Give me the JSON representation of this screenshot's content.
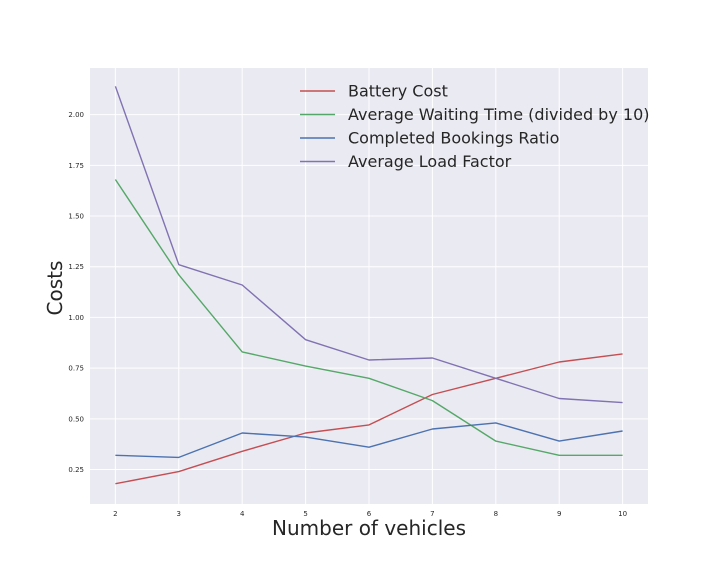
{
  "chart_data": {
    "type": "line",
    "title": "",
    "xlabel": "Number of vehicles",
    "ylabel": "Costs",
    "x": [
      2,
      3,
      4,
      5,
      6,
      7,
      8,
      9,
      10
    ],
    "xlim": [
      1.6,
      10.4
    ],
    "ylim": [
      0.08,
      2.23
    ],
    "yticks": [
      0.25,
      0.5,
      0.75,
      1.0,
      1.25,
      1.5,
      1.75,
      2.0
    ],
    "ytick_labels": [
      "0.25",
      "0.50",
      "0.75",
      "1.00",
      "1.25",
      "1.50",
      "1.75",
      "2.00"
    ],
    "xtick_labels": [
      "2",
      "3",
      "4",
      "5",
      "6",
      "7",
      "8",
      "9",
      "10"
    ],
    "grid": true,
    "legend_position": "top-right",
    "series": [
      {
        "name": "Battery Cost",
        "color": "#c44e52",
        "values": [
          0.18,
          0.24,
          0.34,
          0.43,
          0.47,
          0.62,
          0.7,
          0.78,
          0.82
        ]
      },
      {
        "name": "Average Waiting Time (divided by 10)",
        "color": "#55a868",
        "values": [
          1.68,
          1.21,
          0.83,
          0.76,
          0.7,
          0.59,
          0.39,
          0.32,
          0.32
        ]
      },
      {
        "name": "Completed Bookings Ratio",
        "color": "#4c72b0",
        "values": [
          0.32,
          0.31,
          0.43,
          0.41,
          0.36,
          0.45,
          0.48,
          0.39,
          0.44
        ]
      },
      {
        "name": "Average Load Factor",
        "color": "#8172b2",
        "values": [
          2.14,
          1.26,
          1.16,
          0.89,
          0.79,
          0.8,
          0.7,
          0.6,
          0.58
        ]
      }
    ]
  }
}
